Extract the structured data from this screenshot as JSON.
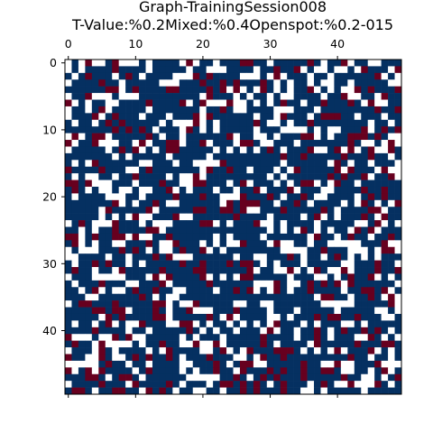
{
  "chart_data": {
    "type": "heatmap",
    "title_lines": [
      "Graph-TrainingSession008",
      "T-Value:%0.2Mixed:%0.4Openspot:%0.2-015"
    ],
    "xlabel": "",
    "ylabel": "",
    "rows": 50,
    "cols": 50,
    "x_ticks": [
      0,
      10,
      20,
      30,
      40
    ],
    "y_ticks": [
      0,
      10,
      20,
      30,
      40
    ],
    "x_tick_position": "top",
    "grid": false,
    "colormap": "RdBu",
    "palette": {
      "dark_blue": "#053061",
      "dark_red": "#67001f",
      "white": "#ffffff"
    },
    "category_fractions": {
      "dark_blue": 0.6,
      "white": 0.25,
      "dark_red": 0.15
    }
  }
}
